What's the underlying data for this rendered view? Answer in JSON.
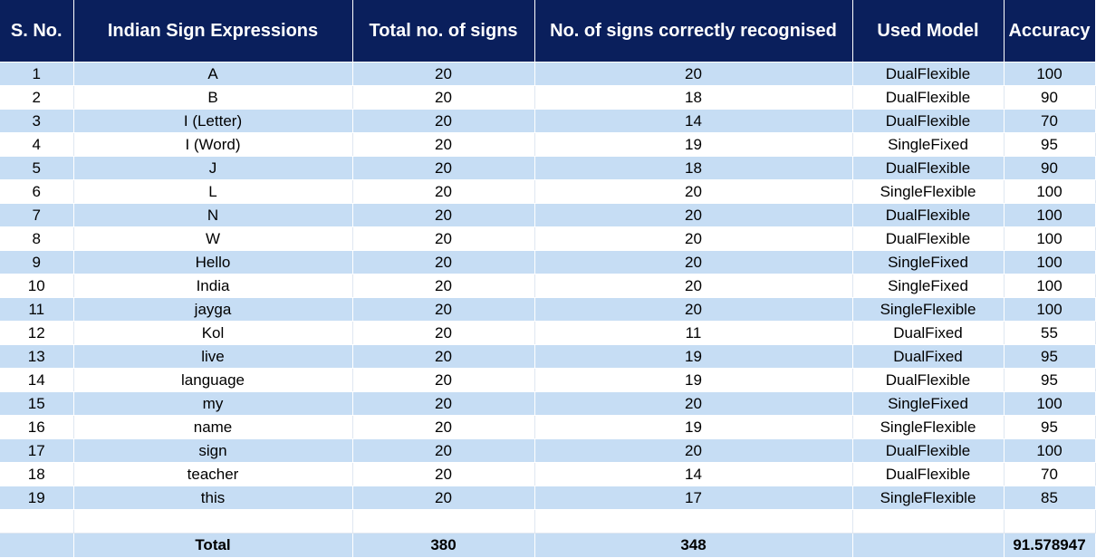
{
  "table": {
    "headers": [
      "S. No.",
      "Indian Sign Expressions",
      "Total no. of signs",
      "No. of signs correctly recognised",
      "Used Model",
      "Accuracy"
    ],
    "rows": [
      [
        "1",
        "A",
        "20",
        "20",
        "DualFlexible",
        "100"
      ],
      [
        "2",
        "B",
        "20",
        "18",
        "DualFlexible",
        "90"
      ],
      [
        "3",
        "I (Letter)",
        "20",
        "14",
        "DualFlexible",
        "70"
      ],
      [
        "4",
        "I (Word)",
        "20",
        "19",
        "SingleFixed",
        "95"
      ],
      [
        "5",
        "J",
        "20",
        "18",
        "DualFlexible",
        "90"
      ],
      [
        "6",
        "L",
        "20",
        "20",
        "SingleFlexible",
        "100"
      ],
      [
        "7",
        "N",
        "20",
        "20",
        "DualFlexible",
        "100"
      ],
      [
        "8",
        "W",
        "20",
        "20",
        "DualFlexible",
        "100"
      ],
      [
        "9",
        "Hello",
        "20",
        "20",
        "SingleFixed",
        "100"
      ],
      [
        "10",
        "India",
        "20",
        "20",
        "SingleFixed",
        "100"
      ],
      [
        "11",
        "jayga",
        "20",
        "20",
        "SingleFlexible",
        "100"
      ],
      [
        "12",
        "Kol",
        "20",
        "11",
        "DualFixed",
        "55"
      ],
      [
        "13",
        "live",
        "20",
        "19",
        "DualFixed",
        "95"
      ],
      [
        "14",
        "language",
        "20",
        "19",
        "DualFlexible",
        "95"
      ],
      [
        "15",
        "my",
        "20",
        "20",
        "SingleFixed",
        "100"
      ],
      [
        "16",
        "name",
        "20",
        "19",
        "SingleFlexible",
        "95"
      ],
      [
        "17",
        "sign",
        "20",
        "20",
        "DualFlexible",
        "100"
      ],
      [
        "18",
        "teacher",
        "20",
        "14",
        "DualFlexible",
        "70"
      ],
      [
        "19",
        "this",
        "20",
        "17",
        "SingleFlexible",
        "85"
      ]
    ],
    "total": {
      "sno": "",
      "label": "Total",
      "total_signs": "380",
      "correct": "348",
      "model": "",
      "accuracy": "91.578947"
    }
  },
  "colors": {
    "header_bg": "#0a1f5c",
    "header_text": "#ffffff",
    "stripe": "#c6ddf4",
    "row_alt": "#ffffff"
  }
}
